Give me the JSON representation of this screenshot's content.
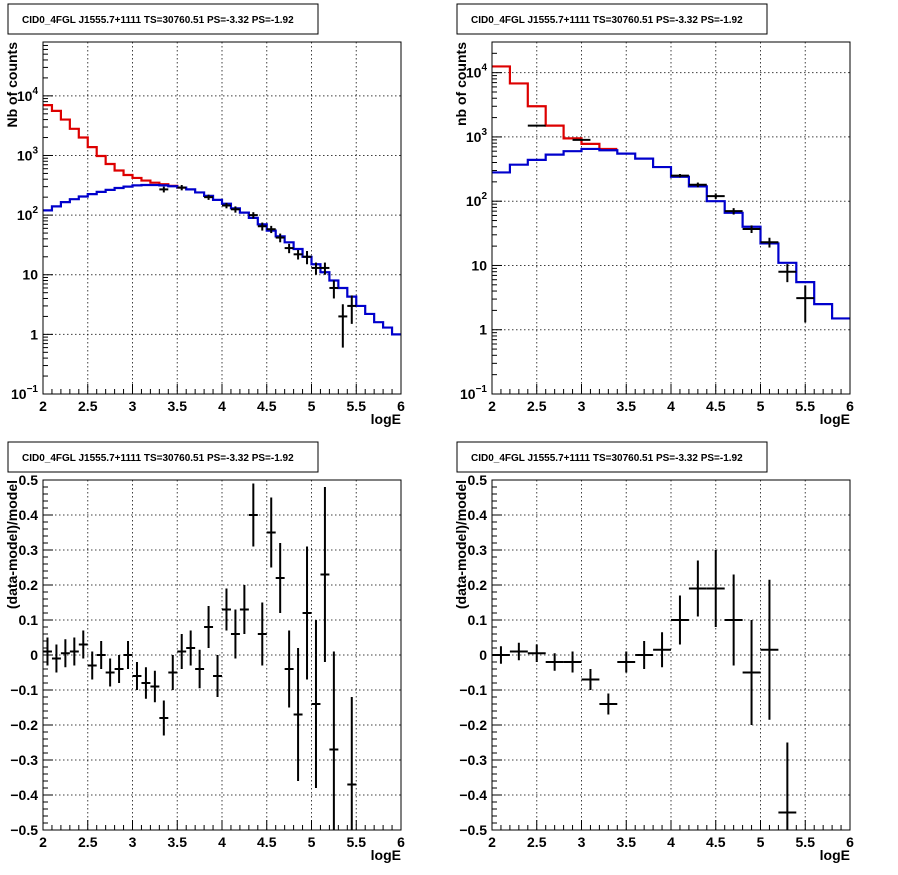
{
  "chart_data": [
    {
      "id": "counts-full",
      "type": "line",
      "title": "CID0_4FGL J1555.7+1111 TS=30760.51 PS=-3.32 PS=-1.92",
      "xlabel": "logE",
      "ylabel": "Nb of counts",
      "xlim": [
        2,
        6
      ],
      "ylim": [
        0.1,
        80000
      ],
      "yscale": "log",
      "grid": true,
      "x_ticks": [
        "2",
        "2.5",
        "3",
        "3.5",
        "4",
        "4.5",
        "5",
        "5.5",
        "6"
      ],
      "y_ticks": [
        {
          "value": 0.1,
          "base": "10",
          "exp": "−1"
        },
        {
          "value": 1,
          "text": "1"
        },
        {
          "value": 10,
          "text": "10"
        },
        {
          "value": 100,
          "base": "10",
          "exp": "2"
        },
        {
          "value": 1000,
          "base": "10",
          "exp": "3"
        },
        {
          "value": 10000,
          "base": "10",
          "exp": "4"
        }
      ],
      "bin_edges": [
        2.0,
        2.1,
        2.2,
        2.3,
        2.4,
        2.5,
        2.6,
        2.7,
        2.8,
        2.9,
        3.0,
        3.1,
        3.2,
        3.3,
        3.4,
        3.5,
        3.6,
        3.7,
        3.8,
        3.9,
        4.0,
        4.1,
        4.2,
        4.3,
        4.4,
        4.5,
        4.6,
        4.7,
        4.8,
        4.9,
        5.0,
        5.1,
        5.2,
        5.3,
        5.4,
        5.5,
        5.6,
        5.7,
        5.8,
        5.9,
        6.0
      ],
      "series": [
        {
          "style": "hist",
          "color": "#dd0000",
          "values": [
            7000,
            5600,
            4000,
            2800,
            2000,
            1380,
            980,
            720,
            560,
            470,
            420,
            380,
            350,
            330,
            310,
            290
          ]
        },
        {
          "style": "hist",
          "color": "#0000cc",
          "values": [
            120,
            140,
            165,
            185,
            205,
            225,
            245,
            265,
            285,
            300,
            315,
            320,
            320,
            315,
            305,
            290,
            270,
            240,
            210,
            180,
            155,
            130,
            110,
            90,
            70,
            55,
            44,
            35,
            27,
            20,
            15,
            11,
            8,
            6,
            4.3,
            3,
            2.2,
            1.6,
            1.3,
            1.0
          ]
        },
        {
          "style": "points",
          "color": "#000000",
          "x": [
            3.35,
            3.55,
            3.85,
            4.05,
            4.15,
            4.35,
            4.45,
            4.55,
            4.65,
            4.75,
            4.85,
            4.95,
            5.05,
            5.15,
            5.25,
            5.35,
            5.45
          ],
          "y": [
            270,
            290,
            200,
            145,
            125,
            100,
            65,
            58,
            42,
            28,
            22,
            20,
            13,
            13,
            6,
            2,
            3
          ],
          "xerr": 0.05,
          "ylow": [
            240,
            260,
            180,
            130,
            110,
            88,
            55,
            50,
            35,
            23,
            18,
            15,
            10,
            10,
            4,
            0.6,
            1.5
          ],
          "yhigh": [
            300,
            320,
            220,
            160,
            140,
            112,
            75,
            66,
            49,
            33,
            26,
            25,
            16,
            16,
            8,
            3.2,
            4.5
          ]
        }
      ]
    },
    {
      "id": "counts-coarse",
      "type": "line",
      "title": "CID0_4FGL J1555.7+1111 TS=30760.51 PS=-3.32 PS=-1.92",
      "xlabel": "logE",
      "ylabel": "nb of counts",
      "xlim": [
        2,
        6
      ],
      "ylim": [
        0.1,
        30000
      ],
      "yscale": "log",
      "grid": true,
      "x_ticks": [
        "2",
        "2.5",
        "3",
        "3.5",
        "4",
        "4.5",
        "5",
        "5.5",
        "6"
      ],
      "y_ticks": [
        {
          "value": 0.1,
          "base": "10",
          "exp": "−1"
        },
        {
          "value": 1,
          "text": "1"
        },
        {
          "value": 10,
          "text": "10"
        },
        {
          "value": 100,
          "base": "10",
          "exp": "2"
        },
        {
          "value": 1000,
          "base": "10",
          "exp": "3"
        },
        {
          "value": 10000,
          "base": "10",
          "exp": "4"
        }
      ],
      "bin_edges": [
        2.0,
        2.2,
        2.4,
        2.6,
        2.8,
        3.0,
        3.2,
        3.4,
        3.6,
        3.8,
        4.0,
        4.2,
        4.4,
        4.6,
        4.8,
        5.0,
        5.2,
        5.4,
        5.6,
        5.8,
        6.0
      ],
      "series": [
        {
          "style": "hist",
          "color": "#dd0000",
          "values": [
            12500,
            6800,
            3000,
            1500,
            950,
            780,
            650
          ]
        },
        {
          "style": "hist",
          "color": "#0000cc",
          "values": [
            280,
            370,
            440,
            530,
            600,
            650,
            620,
            550,
            460,
            340,
            240,
            170,
            100,
            66,
            40,
            22,
            11,
            5.5,
            2.5,
            1.5
          ]
        },
        {
          "style": "points",
          "color": "#000000",
          "x": [
            2.5,
            3.0,
            4.1,
            4.3,
            4.5,
            4.7,
            4.9,
            5.1,
            5.3,
            5.5
          ],
          "y": [
            1500,
            900,
            250,
            180,
            120,
            70,
            37,
            23,
            8,
            3.1
          ],
          "xerr": 0.1,
          "ylow": [
            1460,
            870,
            235,
            165,
            108,
            62,
            32,
            19,
            5.5,
            1.3
          ],
          "yhigh": [
            1540,
            930,
            265,
            195,
            132,
            78,
            42,
            27,
            10.5,
            4.9
          ]
        }
      ]
    },
    {
      "id": "residuals-full",
      "type": "scatter",
      "title": "CID0_4FGL J1555.7+1111 TS=30760.51 PS=-3.32 PS=-1.92",
      "xlabel": "logE",
      "ylabel": "(data-model)/model",
      "xlim": [
        2,
        6
      ],
      "ylim": [
        -0.5,
        0.5
      ],
      "grid": true,
      "x_ticks": [
        "2",
        "2.5",
        "3",
        "3.5",
        "4",
        "4.5",
        "5",
        "5.5",
        "6"
      ],
      "y_ticks": [
        "−0.5",
        "−0.4",
        "−0.3",
        "−0.2",
        "−0.1",
        "0",
        "0.1",
        "0.2",
        "0.3",
        "0.4",
        "0.5"
      ],
      "xerr": 0.05,
      "points": [
        {
          "x": 2.05,
          "y": 0.01,
          "err": 0.04
        },
        {
          "x": 2.15,
          "y": -0.01,
          "err": 0.04
        },
        {
          "x": 2.25,
          "y": 0.005,
          "err": 0.04
        },
        {
          "x": 2.35,
          "y": 0.01,
          "err": 0.04
        },
        {
          "x": 2.45,
          "y": 0.03,
          "err": 0.04
        },
        {
          "x": 2.55,
          "y": -0.03,
          "err": 0.04
        },
        {
          "x": 2.65,
          "y": 0.0,
          "err": 0.04
        },
        {
          "x": 2.75,
          "y": -0.05,
          "err": 0.04
        },
        {
          "x": 2.85,
          "y": -0.04,
          "err": 0.04
        },
        {
          "x": 2.95,
          "y": 0.0,
          "err": 0.04
        },
        {
          "x": 3.05,
          "y": -0.06,
          "err": 0.04
        },
        {
          "x": 3.15,
          "y": -0.08,
          "err": 0.045
        },
        {
          "x": 3.25,
          "y": -0.09,
          "err": 0.045
        },
        {
          "x": 3.35,
          "y": -0.18,
          "err": 0.05
        },
        {
          "x": 3.45,
          "y": -0.05,
          "err": 0.05
        },
        {
          "x": 3.55,
          "y": 0.01,
          "err": 0.05
        },
        {
          "x": 3.65,
          "y": 0.02,
          "err": 0.05
        },
        {
          "x": 3.75,
          "y": -0.04,
          "err": 0.055
        },
        {
          "x": 3.85,
          "y": 0.08,
          "err": 0.06
        },
        {
          "x": 3.95,
          "y": -0.06,
          "err": 0.06
        },
        {
          "x": 4.05,
          "y": 0.13,
          "err": 0.06
        },
        {
          "x": 4.15,
          "y": 0.06,
          "err": 0.07
        },
        {
          "x": 4.25,
          "y": 0.13,
          "err": 0.07
        },
        {
          "x": 4.35,
          "y": 0.4,
          "err": 0.09
        },
        {
          "x": 4.45,
          "y": 0.06,
          "err": 0.09
        },
        {
          "x": 4.55,
          "y": 0.35,
          "err": 0.1
        },
        {
          "x": 4.65,
          "y": 0.22,
          "err": 0.1
        },
        {
          "x": 4.75,
          "y": -0.04,
          "err": 0.11
        },
        {
          "x": 4.85,
          "y": -0.17,
          "err": 0.19
        },
        {
          "x": 4.95,
          "y": 0.12,
          "err": 0.19
        },
        {
          "x": 5.05,
          "y": -0.14,
          "err": 0.24
        },
        {
          "x": 5.15,
          "y": 0.23,
          "err": 0.25
        },
        {
          "x": 5.25,
          "y": -0.27,
          "err": 0.28
        },
        {
          "x": 5.45,
          "y": -0.37,
          "err": 0.25
        }
      ]
    },
    {
      "id": "residuals-coarse",
      "type": "scatter",
      "title": "CID0_4FGL J1555.7+1111 TS=30760.51 PS=-3.32 PS=-1.92",
      "xlabel": "logE",
      "ylabel": "(data-model)/model",
      "xlim": [
        2,
        6
      ],
      "ylim": [
        -0.5,
        0.5
      ],
      "grid": true,
      "x_ticks": [
        "2",
        "2.5",
        "3",
        "3.5",
        "4",
        "4.5",
        "5",
        "5.5",
        "6"
      ],
      "y_ticks": [
        "−0.5",
        "−0.4",
        "−0.3",
        "−0.2",
        "−0.1",
        "0",
        "0.1",
        "0.2",
        "0.3",
        "0.4",
        "0.5"
      ],
      "xerr": 0.1,
      "points": [
        {
          "x": 2.1,
          "y": 0.0,
          "err": 0.025
        },
        {
          "x": 2.3,
          "y": 0.01,
          "err": 0.025
        },
        {
          "x": 2.5,
          "y": 0.005,
          "err": 0.025
        },
        {
          "x": 2.7,
          "y": -0.02,
          "err": 0.025
        },
        {
          "x": 2.9,
          "y": -0.02,
          "err": 0.03
        },
        {
          "x": 3.1,
          "y": -0.07,
          "err": 0.03
        },
        {
          "x": 3.3,
          "y": -0.14,
          "err": 0.03
        },
        {
          "x": 3.5,
          "y": -0.02,
          "err": 0.03
        },
        {
          "x": 3.7,
          "y": 0.0,
          "err": 0.04
        },
        {
          "x": 3.9,
          "y": 0.015,
          "err": 0.05
        },
        {
          "x": 4.1,
          "y": 0.1,
          "err": 0.07
        },
        {
          "x": 4.3,
          "y": 0.19,
          "err": 0.08
        },
        {
          "x": 4.5,
          "y": 0.19,
          "err": 0.11
        },
        {
          "x": 4.7,
          "y": 0.1,
          "err": 0.13
        },
        {
          "x": 4.9,
          "y": -0.05,
          "err": 0.15
        },
        {
          "x": 5.1,
          "y": 0.015,
          "err": 0.2
        },
        {
          "x": 5.3,
          "y": -0.45,
          "err": 0.2
        }
      ]
    }
  ]
}
